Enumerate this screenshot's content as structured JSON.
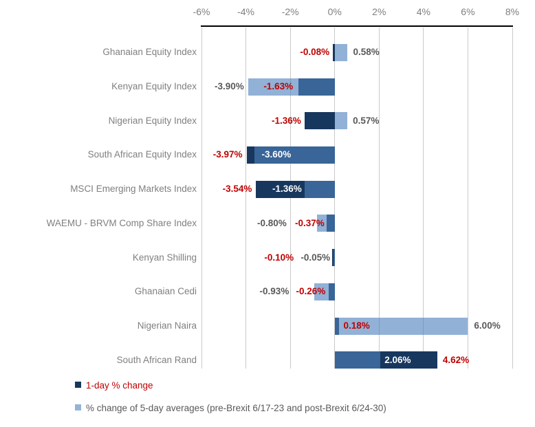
{
  "colors": {
    "one_day_bar": "#17375E",
    "five_day_bar_base": "#4F81BD",
    "five_day_bar_opacity": 0.62,
    "five_day_swatch": "#95B3D7",
    "label_red": "#C00000",
    "label_gray": "#595959",
    "label_white": "#FFFFFF",
    "category_gray": "#7F7F7F",
    "axis_label_gray": "#7F7F7F",
    "gridline": "#C9C9C9",
    "axis_line": "#000000"
  },
  "legend": [
    {
      "label": "1-day % change",
      "swatch": "#17375E",
      "text_color": "#C00000"
    },
    {
      "label": "% change of 5-day averages (pre-Brexit 6/17-23 and post-Brexit 6/24-30)",
      "swatch": "#95B3D7",
      "text_color": "#595959"
    }
  ],
  "chart_data": {
    "type": "bar",
    "orientation": "horizontal",
    "title": "",
    "xlabel": "",
    "ylabel": "",
    "axis_position": "top",
    "xlim": [
      -6,
      8
    ],
    "grid": true,
    "legend_position": "bottom-left",
    "x_ticks": [
      {
        "label": "-6%",
        "value": -6
      },
      {
        "label": "-4%",
        "value": -4
      },
      {
        "label": "-2%",
        "value": -2
      },
      {
        "label": "0%",
        "value": 0
      },
      {
        "label": "2%",
        "value": 2
      },
      {
        "label": "4%",
        "value": 4
      },
      {
        "label": "6%",
        "value": 6
      },
      {
        "label": "8%",
        "value": 8
      }
    ],
    "categories": [
      "Ghanaian Equity Index",
      "Kenyan Equity Index",
      "Nigerian Equity Index",
      "South African Equity Index",
      "MSCI Emerging Markets Index",
      "WAEMU - BRVM Comp Share Index",
      "Kenyan Shilling",
      "Ghanaian Cedi",
      "Nigerian Naira",
      "South African Rand"
    ],
    "series": [
      {
        "name": "1-day % change",
        "color": "#17375E",
        "values": [
          -0.08,
          -1.63,
          -1.36,
          -3.97,
          -3.54,
          -0.37,
          -0.1,
          -0.26,
          0.18,
          4.62
        ]
      },
      {
        "name": "% change of 5-day averages (pre-Brexit 6/17-23 and post-Brexit 6/24-30)",
        "color": "#95B3D7",
        "values": [
          0.58,
          -3.9,
          0.57,
          -3.6,
          -1.36,
          -0.8,
          -0.05,
          -0.93,
          6.0,
          2.06
        ]
      }
    ],
    "rows": [
      {
        "category": "Ghanaian Equity Index",
        "one_day": -0.08,
        "five_day": 0.58,
        "labels": [
          {
            "text": "-0.08%",
            "color": "red",
            "ref": "one_day",
            "align": "right",
            "dx": -5
          },
          {
            "text": "0.58%",
            "color": "gray",
            "ref": "five_day",
            "align": "left",
            "dx": 8
          }
        ]
      },
      {
        "category": "Kenyan Equity Index",
        "one_day": -1.63,
        "five_day": -3.9,
        "labels": [
          {
            "text": "-3.90%",
            "color": "gray",
            "ref": "five_day",
            "align": "right",
            "dx": -6
          },
          {
            "text": "-1.63%",
            "color": "red",
            "ref": "one_day",
            "align": "right",
            "dx": -8
          }
        ]
      },
      {
        "category": "Nigerian Equity Index",
        "one_day": -1.36,
        "five_day": 0.57,
        "labels": [
          {
            "text": "-1.36%",
            "color": "red",
            "ref": "one_day",
            "align": "right",
            "dx": -5
          },
          {
            "text": "0.57%",
            "color": "gray",
            "ref": "five_day",
            "align": "left",
            "dx": 8
          }
        ]
      },
      {
        "category": "South African Equity Index",
        "one_day": -3.97,
        "five_day": -3.6,
        "labels": [
          {
            "text": "-3.97%",
            "color": "red",
            "ref": "one_day",
            "align": "right",
            "dx": -6
          },
          {
            "text": "-3.60%",
            "color": "white",
            "ref": "five_day",
            "align": "left",
            "dx": 10
          }
        ]
      },
      {
        "category": "MSCI Emerging Markets Index",
        "one_day": -3.54,
        "five_day": -1.36,
        "labels": [
          {
            "text": "-3.54%",
            "color": "red",
            "ref": "one_day",
            "align": "right",
            "dx": -6
          },
          {
            "text": "-1.36%",
            "color": "white",
            "ref": "five_day",
            "align": "right",
            "dx": -4
          }
        ]
      },
      {
        "category": "WAEMU - BRVM Comp Share Index",
        "one_day": -0.37,
        "five_day": -0.8,
        "labels": [
          {
            "text": "-0.80%",
            "color": "gray",
            "ref": "one_day",
            "align": "right",
            "dx": -58
          },
          {
            "text": "-0.37%",
            "color": "red",
            "ref": "one_day",
            "align": "right",
            "dx": -3
          }
        ]
      },
      {
        "category": "Kenyan Shilling",
        "one_day": -0.1,
        "five_day": -0.05,
        "labels": [
          {
            "text": "-0.10%",
            "color": "red",
            "ref": "five_day",
            "align": "right",
            "dx": -58
          },
          {
            "text": "-0.05%",
            "color": "gray",
            "ref": "five_day",
            "align": "right",
            "dx": -5
          }
        ]
      },
      {
        "category": "Ghanaian Cedi",
        "one_day": -0.26,
        "five_day": -0.93,
        "labels": [
          {
            "text": "-0.93%",
            "color": "gray",
            "ref": "one_day",
            "align": "right",
            "dx": -58
          },
          {
            "text": "-0.26%",
            "color": "red",
            "ref": "one_day",
            "align": "right",
            "dx": -5
          }
        ]
      },
      {
        "category": "Nigerian Naira",
        "one_day": 0.18,
        "five_day": 6.0,
        "labels": [
          {
            "text": "0.18%",
            "color": "red",
            "ref": "one_day",
            "align": "left",
            "dx": 7
          },
          {
            "text": "6.00%",
            "color": "gray",
            "ref": "five_day",
            "align": "left",
            "dx": 9
          }
        ]
      },
      {
        "category": "South African Rand",
        "one_day": 4.62,
        "five_day": 2.06,
        "labels": [
          {
            "text": "2.06%",
            "color": "white",
            "ref": "five_day",
            "align": "left",
            "dx": 6
          },
          {
            "text": "4.62%",
            "color": "red",
            "ref": "one_day",
            "align": "left",
            "dx": 8
          }
        ]
      }
    ]
  }
}
